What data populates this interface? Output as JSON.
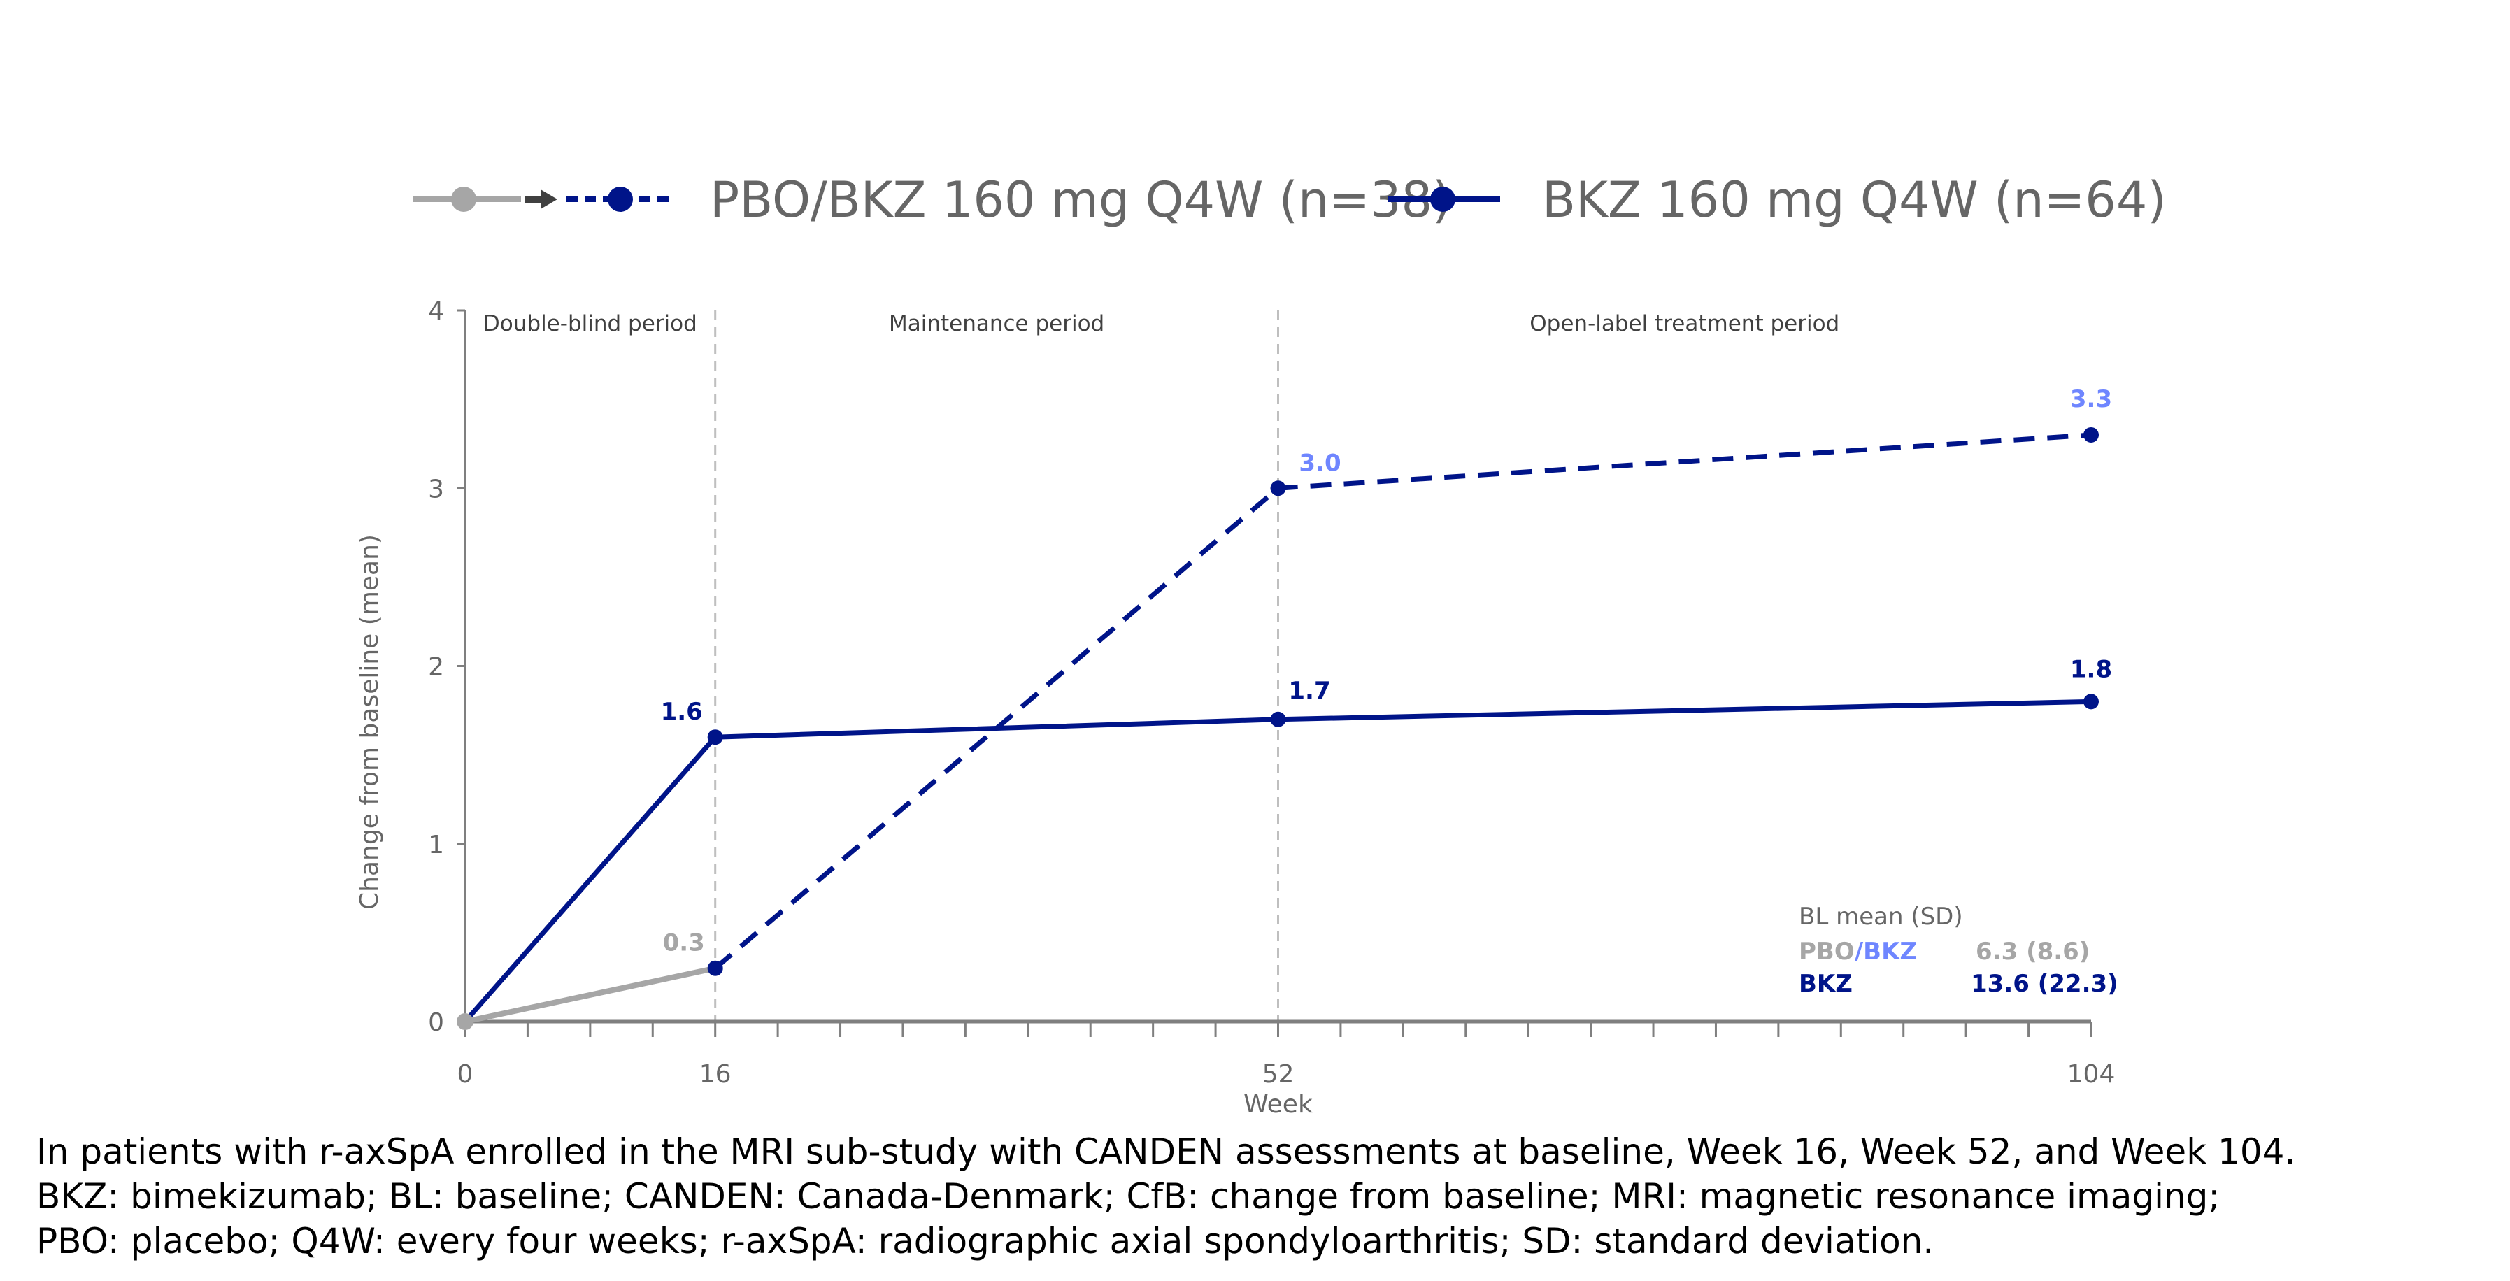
{
  "chart_data": {
    "type": "line",
    "xlabel": "Week",
    "ylabel": "Change from baseline (mean)",
    "xlim": [
      0,
      104
    ],
    "ylim": [
      0,
      4
    ],
    "x_ticks": [
      0,
      16,
      52,
      104
    ],
    "x_minor_tick_step": 4,
    "y_ticks": [
      0,
      1,
      2,
      3,
      4
    ],
    "grid": false,
    "period_dividers": [
      16,
      52
    ],
    "periods": [
      {
        "label": "Double-blind period",
        "from": 0,
        "to": 16
      },
      {
        "label": "Maintenance period",
        "from": 16,
        "to": 52
      },
      {
        "label": "Open-label treatment period",
        "from": 52,
        "to": 104
      }
    ],
    "legend_position": "top",
    "series": [
      {
        "name": "PBO/BKZ 160 mg Q4W (n=38)",
        "segments": [
          {
            "phase": "PBO",
            "color": "#a6a6a6",
            "style": "solid",
            "x": [
              0,
              16
            ],
            "y": [
              0,
              0.3
            ]
          },
          {
            "phase": "BKZ",
            "color": "#001489",
            "style": "dashed",
            "x": [
              16,
              52,
              104
            ],
            "y": [
              0.3,
              3.0,
              3.3
            ]
          }
        ],
        "data_labels": [
          {
            "x": 16,
            "y": 0.3,
            "text": "0.3",
            "color": "#a6a6a6"
          },
          {
            "x": 52,
            "y": 3.0,
            "text": "3.0",
            "color": "#6f86ff"
          },
          {
            "x": 104,
            "y": 3.3,
            "text": "3.3",
            "color": "#6f86ff"
          }
        ]
      },
      {
        "name": "BKZ 160 mg Q4W (n=64)",
        "color": "#001489",
        "style": "solid",
        "x": [
          0,
          16,
          52,
          104
        ],
        "y": [
          0,
          1.6,
          1.7,
          1.8
        ],
        "data_labels": [
          {
            "x": 16,
            "y": 1.6,
            "text": "1.6"
          },
          {
            "x": 52,
            "y": 1.7,
            "text": "1.7"
          },
          {
            "x": 104,
            "y": 1.8,
            "text": "1.8"
          }
        ]
      }
    ],
    "annotation_box": {
      "title": "BL mean (SD)",
      "rows": [
        {
          "label_a": "PBO",
          "label_sep": "/",
          "label_b": "BKZ",
          "value": "6.3 (8.6)"
        },
        {
          "label_a": "BKZ",
          "value": "13.6 (22.3)"
        }
      ]
    }
  },
  "colors": {
    "navy": "#001489",
    "grey": "#a6a6a6",
    "light_blue": "#6f86ff",
    "axis": "#7f7f7f",
    "text": "#666666"
  },
  "footnote": [
    "In patients with r-axSpA enrolled in the MRI sub-study with CANDEN assessments at baseline, Week 16, Week 52, and Week 104.",
    "BKZ: bimekizumab; BL: baseline; CANDEN: Canada-Denmark; CfB: change from baseline; MRI: magnetic resonance imaging;",
    "PBO: placebo; Q4W: every four weeks; r-axSpA: radiographic axial spondyloarthritis; SD: standard deviation."
  ]
}
